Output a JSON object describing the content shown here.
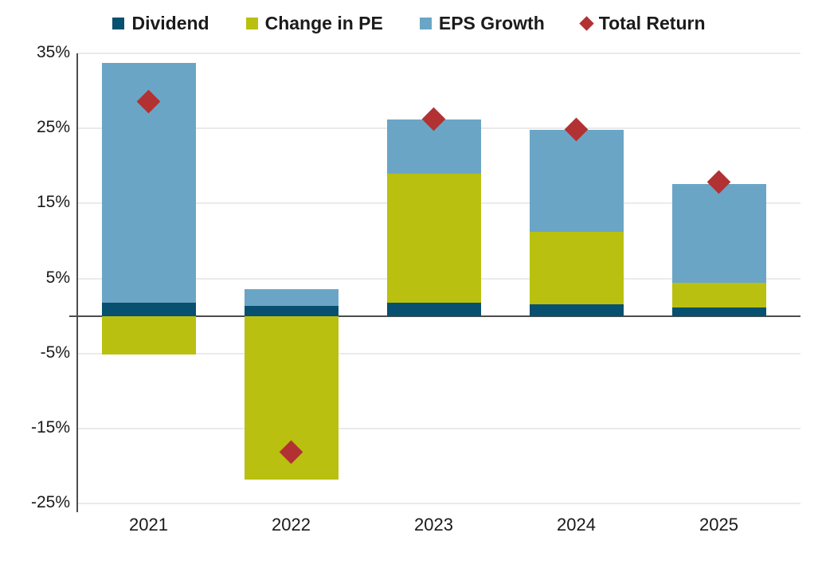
{
  "chart_data": {
    "type": "bar",
    "subtype": "stacked-bars-with-scatter-diamond-markers",
    "title": "",
    "categories": [
      "2021",
      "2022",
      "2023",
      "2024",
      "2025"
    ],
    "series": [
      {
        "name": "Dividend",
        "type": "bar",
        "color": "#07506F",
        "values": [
          1.8,
          1.3,
          1.8,
          1.6,
          1.1
        ]
      },
      {
        "name": "Change in PE",
        "type": "bar",
        "color": "#B9C00F",
        "values": [
          -5.1,
          -21.8,
          17.2,
          9.6,
          3.3
        ]
      },
      {
        "name": "EPS Growth",
        "type": "bar",
        "color": "#6BA5C6",
        "values": [
          31.9,
          2.3,
          7.2,
          13.6,
          13.2
        ]
      },
      {
        "name": "Total Return",
        "type": "scatter-diamond",
        "color": "#B23233",
        "values": [
          28.6,
          -18.1,
          26.2,
          24.9,
          17.9
        ]
      }
    ],
    "xlabel": "",
    "ylabel": "",
    "ylim": [
      -25,
      35
    ],
    "yticks": [
      35,
      25,
      15,
      5,
      -5,
      -15,
      -25
    ],
    "ytick_format": "{v}%",
    "grid": "horizontal",
    "zero_line": true,
    "legend_position": "top",
    "colors": {
      "gridline": "#EAEAEA",
      "zero_line": "#4D4D4D",
      "axis_line": "#4D4D4D",
      "text": "#1A1A1A"
    }
  }
}
